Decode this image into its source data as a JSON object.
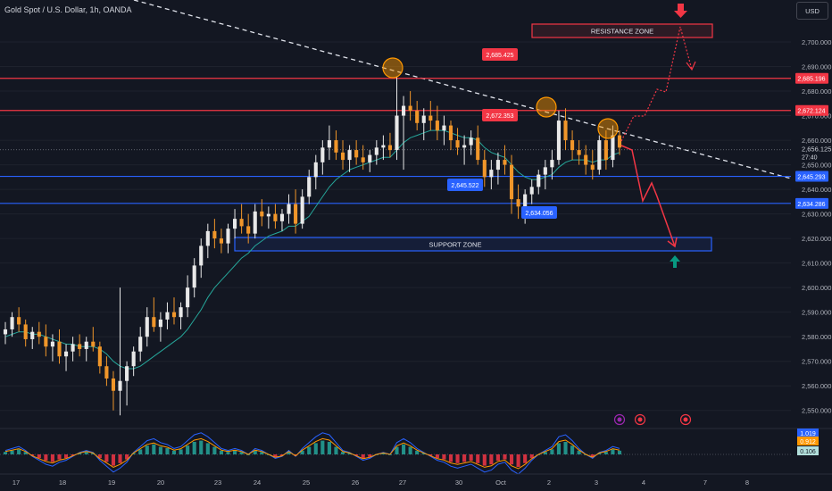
{
  "header": {
    "title": "Gold Spot / U.S. Dollar, 1h, OANDA"
  },
  "currency_button": "USD",
  "colors": {
    "background": "#131722",
    "bull": "#e8e8e8",
    "bear": "#f0962a",
    "resistance": "#f23645",
    "support": "#2962ff",
    "ema": "#26a69a",
    "macd": "#2962ff",
    "signal": "#ff9800",
    "hist_up": "#26a69a",
    "hist_down": "#f23645"
  },
  "chart_data": {
    "type": "candlestick",
    "title": "Gold Spot / U.S. Dollar, 1h, OANDA",
    "yaxis": {
      "ticks": [
        "2,700.000",
        "2,690.000",
        "2,680.000",
        "2,670.000",
        "2,660.000",
        "2,650.000",
        "2,640.000",
        "2,630.000",
        "2,620.000",
        "2,610.000",
        "2,600.000",
        "2,590.000",
        "2,580.000",
        "2,570.000",
        "2,560.000",
        "2,550.000"
      ],
      "range": [
        2547,
        2708
      ]
    },
    "xaxis": {
      "ticks": [
        "17",
        "18",
        "19",
        "20",
        "23",
        "24",
        "25",
        "26",
        "27",
        "30",
        "Oct",
        "2",
        "3",
        "4",
        "7",
        "8"
      ]
    },
    "current_price": {
      "value": "2,656.125",
      "countdown": "27:40"
    },
    "price_levels": [
      {
        "label": "2,685.196",
        "kind": "resistance",
        "value": 2685.196
      },
      {
        "label": "2,672.124",
        "kind": "resistance",
        "value": 2672.124
      },
      {
        "label": "2,645.293",
        "kind": "support",
        "value": 2645.293
      },
      {
        "label": "2,634.286",
        "kind": "support",
        "value": 2634.286
      }
    ],
    "zones": [
      {
        "label": "RESISTANCE ZONE",
        "kind": "resistance",
        "from": 2702,
        "to": 2705
      },
      {
        "label": "SUPPORT ZONE",
        "kind": "support",
        "from": 2616,
        "to": 2620
      }
    ],
    "callouts": [
      {
        "text": "2,685.425",
        "kind": "resistance"
      },
      {
        "text": "2,672.353",
        "kind": "resistance"
      },
      {
        "text": "2,645.522",
        "kind": "support"
      },
      {
        "text": "2,634.056",
        "kind": "support"
      }
    ],
    "indicator": {
      "name": "MACD",
      "labels": [
        "1.019",
        "0.912",
        "0.106"
      ]
    },
    "candles": [
      [
        2581,
        2586,
        2577,
        2583
      ],
      [
        2583,
        2590,
        2580,
        2588
      ],
      [
        2588,
        2592,
        2582,
        2585
      ],
      [
        2585,
        2587,
        2576,
        2579
      ],
      [
        2579,
        2584,
        2575,
        2582
      ],
      [
        2582,
        2586,
        2577,
        2580
      ],
      [
        2580,
        2585,
        2572,
        2576
      ],
      [
        2576,
        2581,
        2570,
        2578
      ],
      [
        2578,
        2583,
        2569,
        2572
      ],
      [
        2572,
        2577,
        2566,
        2574
      ],
      [
        2574,
        2580,
        2570,
        2577
      ],
      [
        2577,
        2581,
        2572,
        2575
      ],
      [
        2575,
        2580,
        2570,
        2578
      ],
      [
        2578,
        2584,
        2574,
        2576
      ],
      [
        2576,
        2578,
        2565,
        2568
      ],
      [
        2568,
        2572,
        2560,
        2563
      ],
      [
        2563,
        2566,
        2550,
        2558
      ],
      [
        2558,
        2600,
        2548,
        2562
      ],
      [
        2562,
        2570,
        2552,
        2568
      ],
      [
        2568,
        2576,
        2564,
        2574
      ],
      [
        2574,
        2584,
        2570,
        2580
      ],
      [
        2580,
        2592,
        2576,
        2588
      ],
      [
        2588,
        2596,
        2582,
        2584
      ],
      [
        2584,
        2590,
        2578,
        2587
      ],
      [
        2587,
        2594,
        2583,
        2590
      ],
      [
        2590,
        2596,
        2585,
        2588
      ],
      [
        2588,
        2594,
        2583,
        2592
      ],
      [
        2592,
        2605,
        2588,
        2600
      ],
      [
        2600,
        2612,
        2596,
        2609
      ],
      [
        2609,
        2620,
        2604,
        2617
      ],
      [
        2617,
        2626,
        2612,
        2623
      ],
      [
        2623,
        2628,
        2616,
        2620
      ],
      [
        2620,
        2624,
        2614,
        2618
      ],
      [
        2618,
        2626,
        2614,
        2624
      ],
      [
        2624,
        2632,
        2620,
        2628
      ],
      [
        2628,
        2634,
        2622,
        2625
      ],
      [
        2625,
        2630,
        2618,
        2622
      ],
      [
        2622,
        2634,
        2620,
        2631
      ],
      [
        2631,
        2636,
        2625,
        2629
      ],
      [
        2629,
        2633,
        2624,
        2630
      ],
      [
        2630,
        2634,
        2624,
        2627
      ],
      [
        2627,
        2632,
        2623,
        2630
      ],
      [
        2630,
        2638,
        2626,
        2634
      ],
      [
        2634,
        2640,
        2622,
        2626
      ],
      [
        2626,
        2640,
        2624,
        2637
      ],
      [
        2637,
        2648,
        2634,
        2645
      ],
      [
        2645,
        2654,
        2640,
        2651
      ],
      [
        2651,
        2660,
        2646,
        2657
      ],
      [
        2657,
        2666,
        2652,
        2660
      ],
      [
        2660,
        2664,
        2652,
        2655
      ],
      [
        2655,
        2660,
        2648,
        2652
      ],
      [
        2652,
        2658,
        2647,
        2656
      ],
      [
        2656,
        2660,
        2650,
        2653
      ],
      [
        2653,
        2658,
        2648,
        2651
      ],
      [
        2651,
        2656,
        2647,
        2654
      ],
      [
        2654,
        2660,
        2650,
        2657
      ],
      [
        2657,
        2662,
        2652,
        2658
      ],
      [
        2658,
        2663,
        2653,
        2656
      ],
      [
        2656,
        2686,
        2652,
        2670
      ],
      [
        2670,
        2678,
        2648,
        2674
      ],
      [
        2674,
        2680,
        2668,
        2672
      ],
      [
        2672,
        2676,
        2664,
        2667
      ],
      [
        2667,
        2673,
        2660,
        2670
      ],
      [
        2670,
        2676,
        2664,
        2668
      ],
      [
        2668,
        2674,
        2660,
        2664
      ],
      [
        2664,
        2670,
        2658,
        2666
      ],
      [
        2666,
        2668,
        2656,
        2660
      ],
      [
        2660,
        2665,
        2654,
        2657
      ],
      [
        2657,
        2662,
        2650,
        2658
      ],
      [
        2658,
        2664,
        2654,
        2661
      ],
      [
        2661,
        2666,
        2650,
        2652
      ],
      [
        2652,
        2656,
        2641,
        2645
      ],
      [
        2645,
        2652,
        2640,
        2648
      ],
      [
        2648,
        2655,
        2642,
        2652
      ],
      [
        2652,
        2658,
        2646,
        2650
      ],
      [
        2650,
        2654,
        2630,
        2636
      ],
      [
        2636,
        2642,
        2628,
        2633
      ],
      [
        2633,
        2640,
        2626,
        2638
      ],
      [
        2638,
        2644,
        2634,
        2641
      ],
      [
        2641,
        2648,
        2638,
        2646
      ],
      [
        2646,
        2652,
        2640,
        2649
      ],
      [
        2649,
        2656,
        2644,
        2652
      ],
      [
        2652,
        2672,
        2650,
        2668
      ],
      [
        2668,
        2673,
        2656,
        2660
      ],
      [
        2660,
        2664,
        2652,
        2656
      ],
      [
        2656,
        2660,
        2650,
        2654
      ],
      [
        2654,
        2658,
        2646,
        2650
      ],
      [
        2650,
        2656,
        2644,
        2648
      ],
      [
        2648,
        2662,
        2646,
        2660
      ],
      [
        2660,
        2664,
        2648,
        2652
      ],
      [
        2652,
        2666,
        2649,
        2662
      ],
      [
        2662,
        2664,
        2654,
        2657
      ]
    ],
    "ema": [
      2580,
      2581,
      2582,
      2582,
      2581,
      2581,
      2580,
      2579,
      2578,
      2577,
      2577,
      2576,
      2576,
      2576,
      2575,
      2573,
      2570,
      2568,
      2567,
      2567,
      2568,
      2570,
      2572,
      2574,
      2576,
      2578,
      2580,
      2583,
      2587,
      2591,
      2596,
      2600,
      2603,
      2606,
      2609,
      2612,
      2614,
      2617,
      2619,
      2621,
      2622,
      2623,
      2625,
      2625,
      2627,
      2629,
      2633,
      2637,
      2641,
      2644,
      2646,
      2648,
      2649,
      2650,
      2651,
      2652,
      2653,
      2653,
      2656,
      2659,
      2661,
      2662,
      2663,
      2664,
      2664,
      2664,
      2663,
      2662,
      2661,
      2661,
      2660,
      2657,
      2655,
      2654,
      2653,
      2650,
      2647,
      2645,
      2644,
      2644,
      2645,
      2646,
      2649,
      2651,
      2652,
      2652,
      2652,
      2651,
      2652,
      2652,
      2654,
      2655
    ],
    "macd_hist": [
      0.2,
      0.3,
      0.4,
      0.2,
      -0.1,
      -0.3,
      -0.5,
      -0.6,
      -0.4,
      -0.3,
      -0.1,
      0.1,
      0.2,
      0.1,
      -0.3,
      -0.6,
      -0.9,
      -0.7,
      -0.4,
      0.1,
      0.4,
      0.7,
      0.8,
      0.6,
      0.5,
      0.3,
      0.4,
      0.7,
      1.0,
      1.1,
      0.9,
      0.6,
      0.3,
      0.2,
      0.3,
      0.2,
      0.0,
      0.3,
      0.2,
      0.0,
      -0.2,
      -0.1,
      0.2,
      -0.1,
      0.3,
      0.6,
      0.9,
      1.1,
      1.0,
      0.6,
      0.2,
      0.1,
      -0.1,
      -0.3,
      -0.2,
      0.0,
      0.1,
      0.0,
      0.6,
      0.8,
      0.6,
      0.3,
      0.1,
      -0.1,
      -0.3,
      -0.4,
      -0.6,
      -0.7,
      -0.6,
      -0.5,
      -0.7,
      -0.9,
      -0.8,
      -0.5,
      -0.4,
      -0.8,
      -1.0,
      -0.7,
      -0.3,
      0.0,
      0.2,
      0.4,
      0.9,
      1.0,
      0.7,
      0.3,
      0.0,
      -0.2,
      0.1,
      0.2,
      0.4,
      0.3
    ],
    "projection": {
      "up_path": [
        2655,
        2668,
        2664,
        2684,
        2680,
        2705,
        2690
      ],
      "down_path": [
        2659,
        2652,
        2645,
        2648,
        2636,
        2640,
        2618
      ]
    }
  }
}
